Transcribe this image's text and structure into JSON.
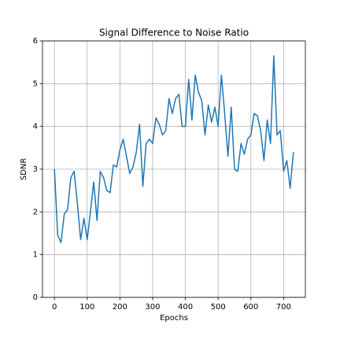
{
  "chart_data": {
    "type": "line",
    "title": "Signal Difference to Noise Ratio",
    "xlabel": "Epochs",
    "ylabel": "SDNR",
    "x": [
      0,
      10,
      20,
      30,
      40,
      50,
      60,
      70,
      80,
      90,
      100,
      110,
      120,
      130,
      140,
      150,
      160,
      170,
      180,
      190,
      200,
      210,
      220,
      230,
      240,
      250,
      260,
      270,
      280,
      290,
      300,
      310,
      320,
      330,
      340,
      350,
      360,
      370,
      380,
      390,
      400,
      410,
      420,
      430,
      440,
      450,
      460,
      470,
      480,
      490,
      500,
      510,
      520,
      530,
      540,
      550,
      560,
      570,
      580,
      590,
      600,
      610,
      620,
      630,
      640,
      650,
      660,
      670,
      680,
      690,
      700,
      710,
      720,
      730
    ],
    "series": [
      {
        "name": "SDNR",
        "color": "#1f77b4",
        "values": [
          3.0,
          1.45,
          1.28,
          1.95,
          2.05,
          2.8,
          2.95,
          2.2,
          1.35,
          1.85,
          1.35,
          2.0,
          2.7,
          1.8,
          2.95,
          2.8,
          2.5,
          2.45,
          3.1,
          3.05,
          3.45,
          3.7,
          3.3,
          2.9,
          3.05,
          3.4,
          4.05,
          2.6,
          3.6,
          3.7,
          3.6,
          4.2,
          4.05,
          3.8,
          3.9,
          4.65,
          4.3,
          4.65,
          4.75,
          4.0,
          4.0,
          5.1,
          4.15,
          5.2,
          4.8,
          4.6,
          3.8,
          4.5,
          4.1,
          4.45,
          4.0,
          5.2,
          4.3,
          3.3,
          4.45,
          3.0,
          2.95,
          3.6,
          3.35,
          3.7,
          3.8,
          4.3,
          4.25,
          3.9,
          3.2,
          4.15,
          3.6,
          5.65,
          3.8,
          3.9,
          2.95,
          3.2,
          2.55,
          3.4
        ]
      }
    ],
    "xlim": [
      -36.5,
      766.5
    ],
    "xticks": [
      0,
      100,
      200,
      300,
      400,
      500,
      600,
      700
    ],
    "ylim": [
      0,
      6
    ],
    "yticks": [
      0,
      1,
      2,
      3,
      4,
      5,
      6
    ],
    "grid": true
  }
}
